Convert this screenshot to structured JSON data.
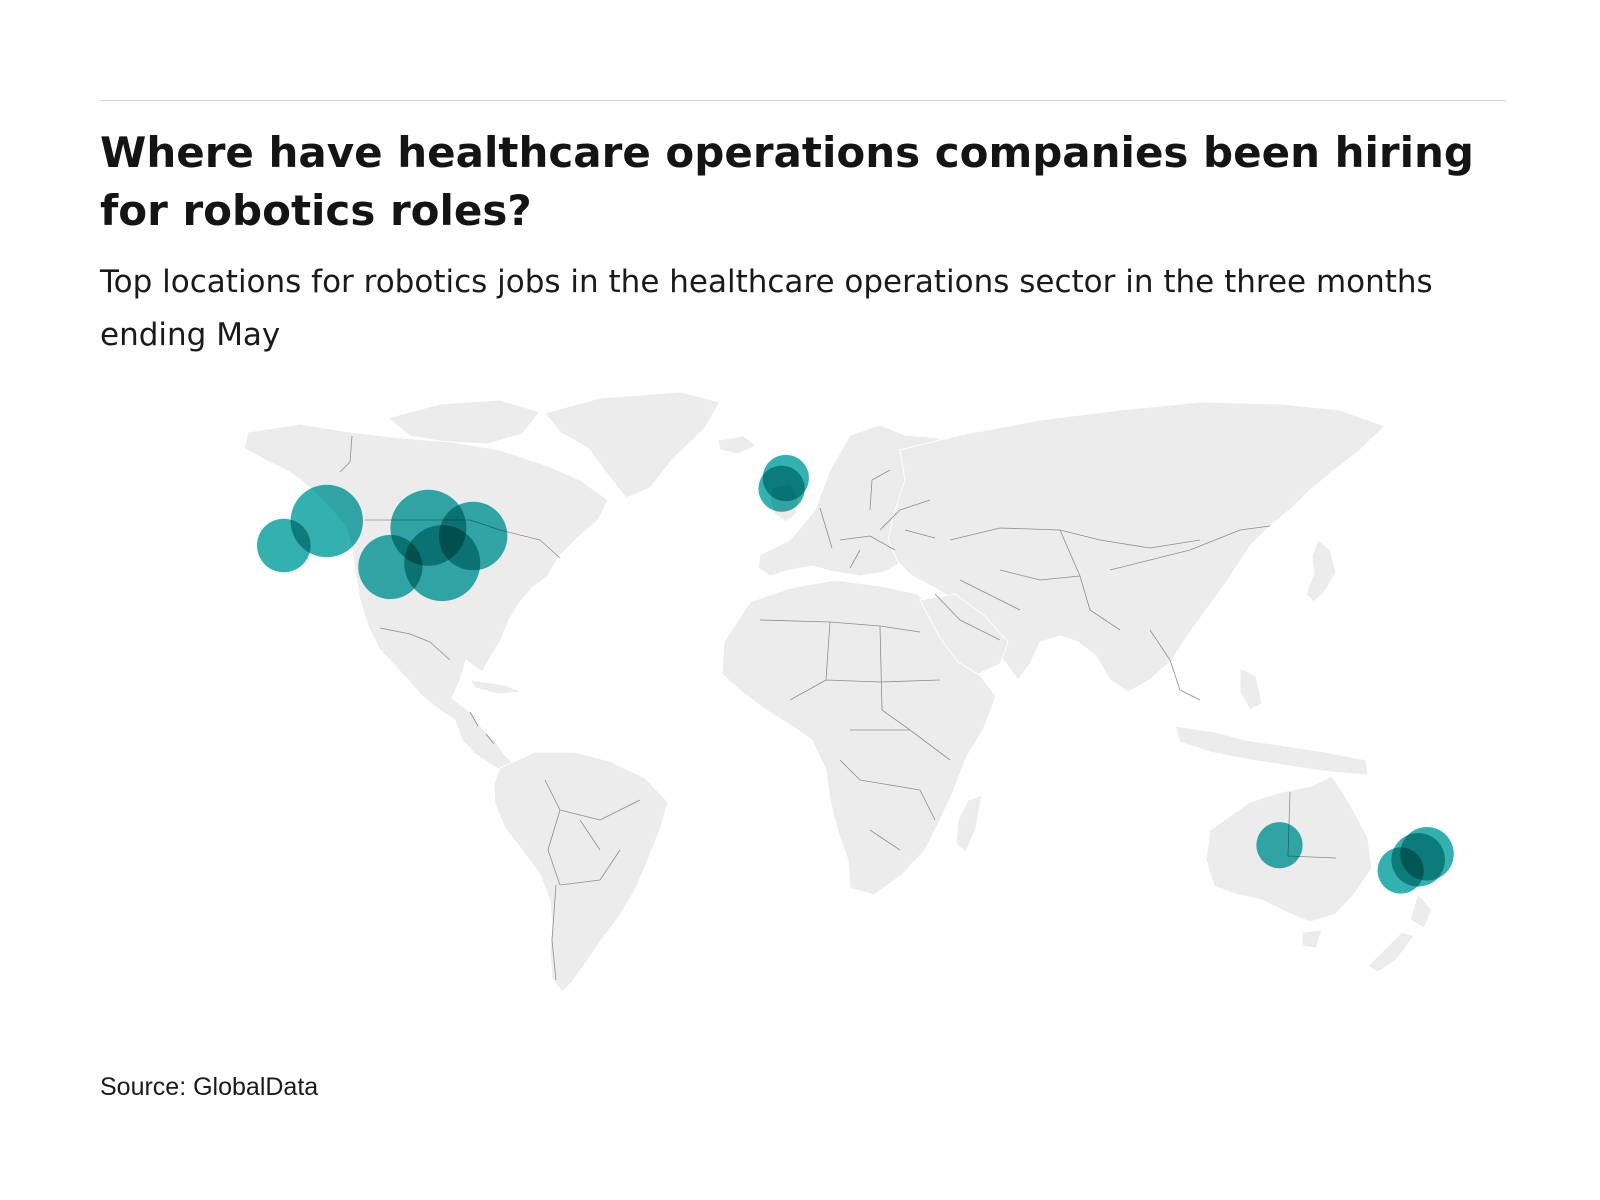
{
  "header": {
    "title": "Where have healthcare operations companies been hiring for robotics roles?",
    "subtitle": "Top locations for robotics jobs in the healthcare operations sector in the three months ending May"
  },
  "footer": {
    "source": "Source: GlobalData"
  },
  "colors": {
    "land": "#ececec",
    "border": "#8d8d8d",
    "bubble": "#17a6a6",
    "rule": "#d5d5d5"
  },
  "map": {
    "type": "world-bubble-map",
    "projection": "equirectangular"
  },
  "chart_data": {
    "type": "bubble-map",
    "points": [
      {
        "lon": -122.3,
        "lat": 37.8,
        "size": 2
      },
      {
        "lon": -112.0,
        "lat": 43.5,
        "size": 6
      },
      {
        "lon": -96.8,
        "lat": 32.8,
        "size": 4
      },
      {
        "lon": -87.7,
        "lat": 41.9,
        "size": 7
      },
      {
        "lon": -84.4,
        "lat": 33.7,
        "size": 7
      },
      {
        "lon": -77.0,
        "lat": 40.0,
        "size": 5
      },
      {
        "lon": -2.2,
        "lat": 53.5,
        "size": 1
      },
      {
        "lon": -3.2,
        "lat": 51.0,
        "size": 1
      },
      {
        "lon": 115.9,
        "lat": -31.9,
        "size": 1
      },
      {
        "lon": 151.2,
        "lat": -33.9,
        "size": 2
      },
      {
        "lon": 149.1,
        "lat": -35.3,
        "size": 2
      },
      {
        "lon": 144.9,
        "lat": -37.8,
        "size": 1
      }
    ]
  }
}
